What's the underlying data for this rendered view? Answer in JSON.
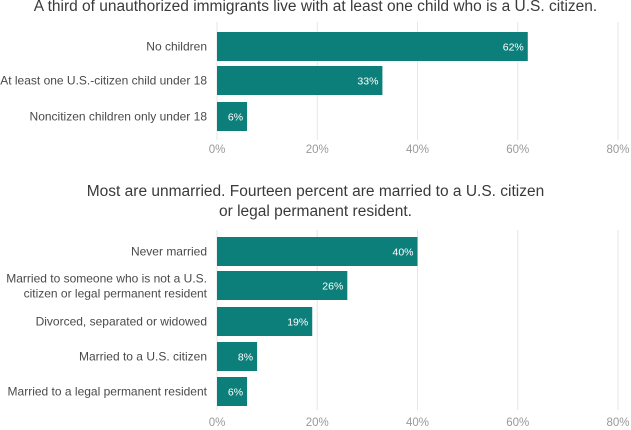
{
  "chart_data": [
    {
      "type": "bar",
      "orientation": "horizontal",
      "title": "A third of unauthorized immigrants live with at least one child who is a U.S. citizen.",
      "categories": [
        "No children",
        "At least one U.S.-citizen child under 18",
        "Noncitizen children only under 18"
      ],
      "values": [
        62,
        33,
        6
      ],
      "value_labels": [
        "62%",
        "33%",
        "6%"
      ],
      "xlim": [
        0,
        80
      ],
      "ticks": [
        "0%",
        "20%",
        "40%",
        "60%",
        "80%"
      ],
      "grid": true,
      "bar_color": "#0d7f7a"
    },
    {
      "type": "bar",
      "orientation": "horizontal",
      "title": "Most are unmarried. Fourteen percent are married to a U.S. citizen or legal permanent resident.",
      "categories": [
        "Never married",
        "Married to someone who is not a U.S. citizen or legal permanent resident",
        "Divorced, separated or widowed",
        "Married to a U.S. citizen",
        "Married to a legal permanent resident"
      ],
      "values": [
        40,
        26,
        19,
        8,
        6
      ],
      "value_labels": [
        "40%",
        "26%",
        "19%",
        "8%",
        "6%"
      ],
      "xlim": [
        0,
        80
      ],
      "ticks": [
        "0%",
        "20%",
        "40%",
        "60%",
        "80%"
      ],
      "grid": true,
      "bar_color": "#0d7f7a"
    }
  ]
}
